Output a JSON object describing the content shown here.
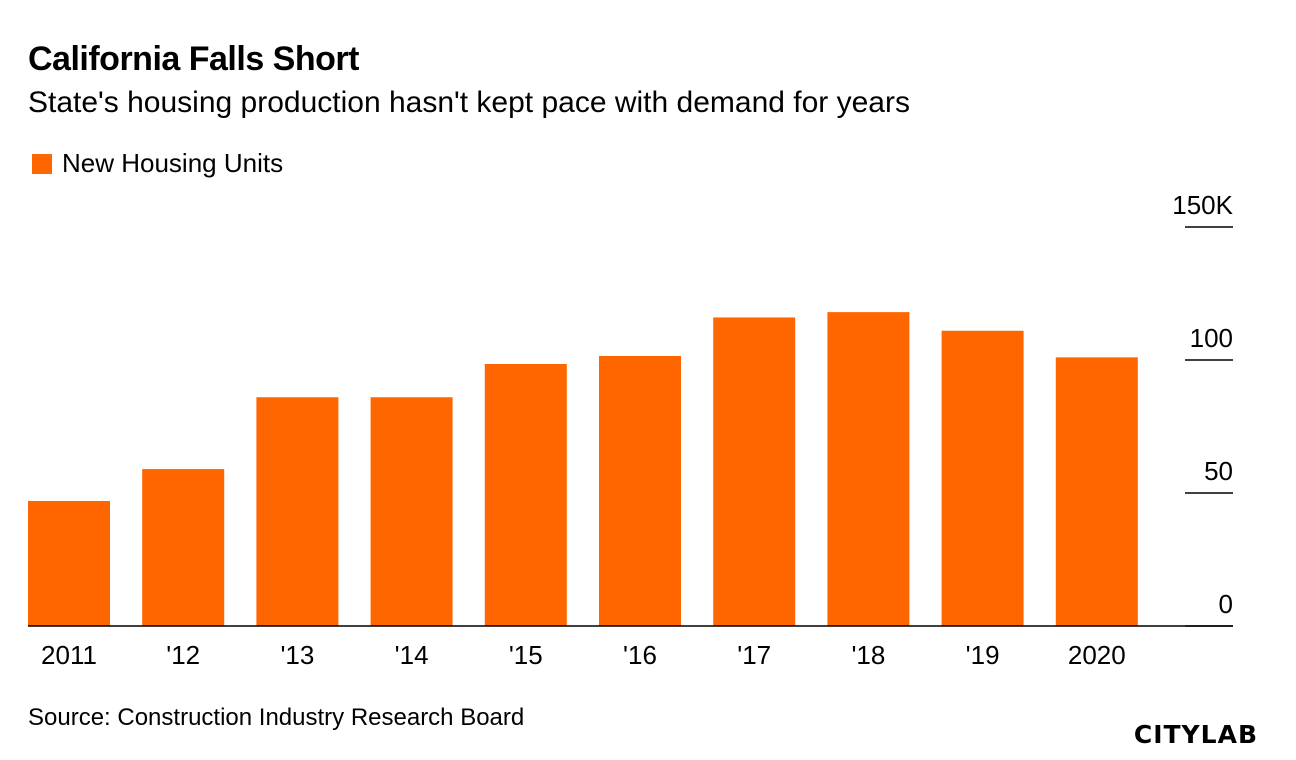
{
  "title": "California Falls Short",
  "subtitle": "State's housing production hasn't kept pace with demand for years",
  "source": "Source: Construction Industry Research Board",
  "logo": "CITYLAB",
  "colors": {
    "bar": "#ff6600",
    "axis": "#000000"
  },
  "chart_data": {
    "type": "bar",
    "categories": [
      "2011",
      "'12",
      "'13",
      "'14",
      "'15",
      "'16",
      "'17",
      "'18",
      "'19",
      "2020"
    ],
    "series": [
      {
        "name": "New Housing Units",
        "values": [
          47,
          59,
          86,
          86,
          98.5,
          101.5,
          116,
          118,
          111,
          101
        ]
      }
    ],
    "yticks": [
      0,
      50,
      100,
      150
    ],
    "ytick_labels": [
      "0",
      "50",
      "100",
      "150K"
    ],
    "ylim": [
      0,
      150
    ],
    "legend": "top-left",
    "grid": false
  }
}
